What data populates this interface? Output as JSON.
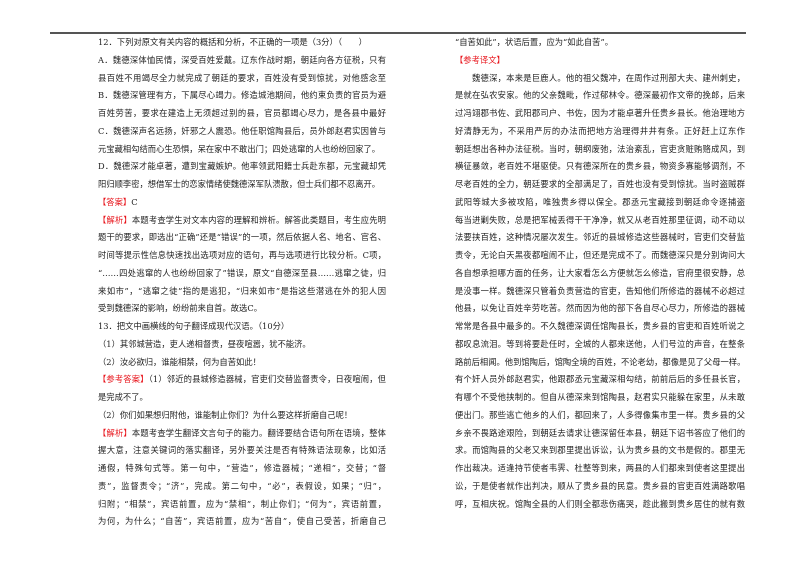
{
  "left": {
    "lines": [
      {
        "text": "12．下列对原文有关内容的概括和分析，不正确的一项是（3分）（　　）"
      },
      {
        "text": "A．魏德深体恤民情，深受百姓爱戴。辽东作战时期，朝廷向各方征税，只有贵乡"
      },
      {
        "text": "县百姓不用竭尽全力就完成了朝廷的要求，百姓没有受到惊扰，对他感念至深。"
      },
      {
        "text": "B．魏德深管理有方，下属尽心竭力。修造城池期间，他约束负责的官员为避免使"
      },
      {
        "text": "百姓劳苦，要求在建造上无须超过别的县，官员都竭心尽力，是各县中最好的。"
      },
      {
        "text": "C．魏德深声名远扬，奸邪之人震恐。他任职馆陶县后，员外郎赵君实因曾与郡丞"
      },
      {
        "text": "元宝藏相勾结而心生恐惧，呆在家中不敢出门；四处逃窜的人也纷纷回家了。"
      },
      {
        "text": "D．魏德深才能卓著，遭到宝藏嫉妒。他率领武阳籍士兵赴东都，元宝藏却凭借武"
      },
      {
        "text": "阳归顺李密，想借军士的恋家情绪使魏德深军队溃散，但士兵们都不忍离开。"
      },
      {
        "label": "【答案】",
        "text": "C"
      },
      {
        "label": "【解析】",
        "text": "本题考查学生对文本内容的理解和辨析。解答此类题目，考生应先明确"
      },
      {
        "text": "题干的要求，即选出“正确”还是“错误”的一项，然后依据人名、地名、官名、"
      },
      {
        "text": "时间等提示性信息快速找出选项对应的语句，再与选项进行比较分析。C项，"
      },
      {
        "text": "“……四处逃窜的人也纷纷回家了”错误，原文“自德深至县……逃窜之徒，归"
      },
      {
        "text": "来如市”，“逃窜之徒”指的是逃犯，“归来如市”是指这些潜逃在外的犯人因"
      },
      {
        "text": "受到魏德深的影响，纷纷前来自首。故选C。"
      },
      {
        "text": "13．把文中画横线的句子翻译成现代汉语。（10分）"
      },
      {
        "text": "（1）其邻城营造，吏人递相督责，昼夜喧嚣，犹不能济。"
      },
      {
        "text": "（2）汝必欲归，谁能相禁，何为自苦如此！"
      },
      {
        "label": "【参考答案】",
        "text": "（1）邻近的县城修造器械，官吏们交替监督责令，日夜喧闹，但还"
      },
      {
        "text": "是完成不了。"
      },
      {
        "text": "（2）你们如果想归附他，谁能制止你们？为什么要这样折磨自己呢！"
      },
      {
        "label": "【解析】",
        "text": "本题考查学生翻译文言句子的能力。翻译要结合语句所在语境，整体把"
      },
      {
        "text": "握大意，注意关键词的落实翻译，另外要关注是否有特殊语法现象，比如活用，"
      },
      {
        "text": "通假，特殊句式等。第一句中，“营造”，修造器械；“递相”，交替；“督"
      },
      {
        "text": "责”，监督责令；“济”，完成。第二句中，“必”，表假设，如果；“归”，"
      },
      {
        "text": "归附；“相禁”，宾语前置，应为“禁相”，制止你们；“何为”，宾语前置，"
      },
      {
        "text": "为何，为什么；“自苦”，宾语前置，应为“苦自”，使自己受苦，折磨自己"
      }
    ]
  },
  "right": {
    "lines": [
      {
        "text": "“自苦如此”，状语后置，应为“如此自苦”。"
      },
      {
        "label": "【参考译文】",
        "text": ""
      },
      {
        "text": "魏德深，本来是巨鹿人。他的祖父魏冲，在周作过刑部大夫、建州刺史，于"
      },
      {
        "text": "是就在弘农安家。他的父亲魏毗，作过郁林令。德深最初作文帝的挽郎，后来作"
      },
      {
        "text": "过冯翊郡书佐、武阳郡司户、书佐，因为才能卓著升任贵乡县长。他治理地方喜"
      },
      {
        "text": "好清静无为，不采用严厉的办法而把地方治理得井井有条。正好赶上辽东作战，"
      },
      {
        "text": "朝廷想出各种办法征税。当时，朝纲废弛，法治紊乱，官吏贪赃贿赂成风，到处"
      },
      {
        "text": "横征暴敛，老百姓不堪驱使。只有德深所在的贵乡县，物资多寡能够调剂，不竭"
      },
      {
        "text": "尽老百姓的全力，朝廷要求的全部满足了，百姓也没有受到惊扰。当时盗贼群起，"
      },
      {
        "text": "武阳等城大多被攻陷，唯独贵乡得以保全。郡丞元宝藏接到朝廷命令逐捕盗贼，"
      },
      {
        "text": "每当进剿失败，总是把军械丢得干干净净，就又从老百姓那里征调，动不动以军"
      },
      {
        "text": "法要挟百姓，这种情况屡次发生。邻近的县城修造这些器械时，官吏们交替监督"
      },
      {
        "text": "责令，无论白天黑夜都喧闹不止，但还是完成不了。而魏德深只是分别询问大家"
      },
      {
        "text": "各自想承担哪方面的任务，让大家看怎么方便就怎么修造，官府里很安静，总像"
      },
      {
        "text": "是没事一样。魏德深只管着负责营造的官吏，告知他们所修造的器械不必超过其"
      },
      {
        "text": "他县，以免让百姓辛劳吃苦。然而因为他的部下各自尽心尽力，所修造的器械又"
      },
      {
        "text": "常常是各县中最多的。不久魏德深调任馆陶县长，贵乡县的官吏和百姓听说之后，"
      },
      {
        "text": "都叹息流泪。等到将要赴任时，全城的人都来送他，人们号泣的声音，在整条道"
      },
      {
        "text": "路前后相闻。他到馆陶后，馆陶全境的百姓，不论老幼，都像是见了父母一样。"
      },
      {
        "text": "有个奸人员外郎赵君实，他跟郡丞元宝藏深相勾结，前前后后的多任县长官，没"
      },
      {
        "text": "有哪个不受他挟制的。但自从德深来到馆陶县，赵君实只能躲在家里，从未敢随"
      },
      {
        "text": "便出门。那些逃亡他乡的人们，都回来了，人多得像集市里一样。贵乡县的父老"
      },
      {
        "text": "乡亲不畏路途艰险，到朝廷去请求让德深留任本县，朝廷下诏书答应了他们的请"
      },
      {
        "text": "求。而馆陶县的父老又来到郡里提出诉讼，认为贵乡县的文书是假的。郡里无法"
      },
      {
        "text": "作出裁决。适逢持节使者韦霁、杜整等到来，两县的人们都来到使者这里提出诉"
      },
      {
        "text": "讼，于是使者就作出判决，顺从了贵乡县的民意。贵乡县的官吏百姓满路歌唱欢"
      },
      {
        "text": "呼，互相庆祝。馆陶全县的人们则全都悲伤痛哭，趁此搬到贵乡居住的就有数百"
      }
    ]
  },
  "colors": {
    "label_red": "#e8141b",
    "text": "#222222",
    "rule": "#555555"
  }
}
